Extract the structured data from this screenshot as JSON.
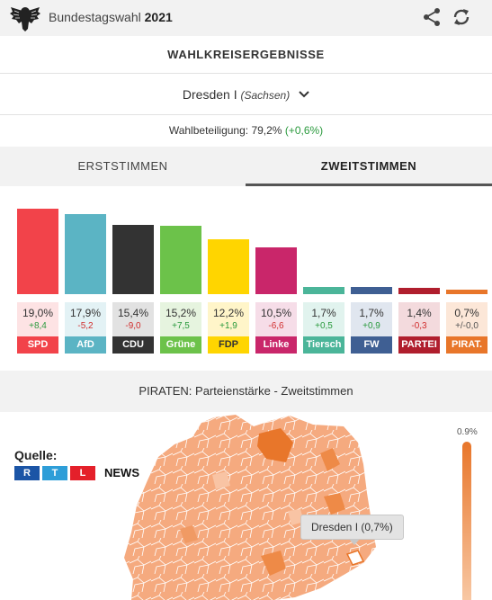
{
  "header": {
    "brand_prefix": "Bundestagswahl",
    "brand_year": "2021",
    "icons": [
      "eagle-logo-icon",
      "share-icon",
      "refresh-icon"
    ]
  },
  "section_title": "WAHLKREISERGEBNISSE",
  "district": {
    "name": "Dresden I",
    "state": "(Sachsen)"
  },
  "turnout": {
    "label": "Wahlbeteiligung: 79,2%",
    "diff": "(+0,6%)"
  },
  "tabs": [
    {
      "label": "ERSTSTIMMEN",
      "active": false
    },
    {
      "label": "ZWEITSTIMMEN",
      "active": true
    }
  ],
  "chart_data": {
    "type": "bar",
    "categories": [
      "SPD",
      "AfD",
      "CDU",
      "Grüne",
      "FDP",
      "Linke",
      "Tiersch",
      "FW",
      "PARTEI",
      "PIRAT."
    ],
    "values": [
      19.0,
      17.9,
      15.4,
      15.2,
      12.2,
      10.5,
      1.7,
      1.7,
      1.4,
      0.7
    ],
    "value_labels": [
      "19,0%",
      "17,9%",
      "15,4%",
      "15,2%",
      "12,2%",
      "10,5%",
      "1,7%",
      "1,7%",
      "1,4%",
      "0,7%"
    ],
    "changes": [
      "+8,4",
      "-5,2",
      "-9,0",
      "+7,5",
      "+1,9",
      "-6,6",
      "+0,5",
      "+0,9",
      "-0,3",
      "+/-0,0"
    ],
    "change_signs": [
      "pos",
      "neg",
      "neg",
      "pos",
      "pos",
      "neg",
      "pos",
      "pos",
      "neg",
      "neu"
    ],
    "colors": [
      "#f2434a",
      "#5bb4c4",
      "#333333",
      "#6cc24a",
      "#ffd500",
      "#c9266a",
      "#4bb599",
      "#3f5f93",
      "#b01e2d",
      "#e8762a"
    ],
    "card_backgrounds": [
      "#fde3e4",
      "#e3f2f5",
      "#e2e2e2",
      "#e6f4df",
      "#fff5c9",
      "#f6dde8",
      "#e1f3ee",
      "#e0e6ef",
      "#f3dadd",
      "#fce7d8"
    ],
    "ylim": [
      0,
      20
    ]
  },
  "map_title": "PIRATEN: Parteienstärke - Zweitstimmen",
  "map": {
    "source_label": "Quelle:",
    "rtl_letters": [
      "R",
      "T",
      "L"
    ],
    "rtl_colors": [
      "#1b55a6",
      "#2e9ed8",
      "#e4202a"
    ],
    "news_label": "NEWS",
    "legend_max": "0.9%",
    "tooltip": "Dresden I (0,7%)"
  }
}
